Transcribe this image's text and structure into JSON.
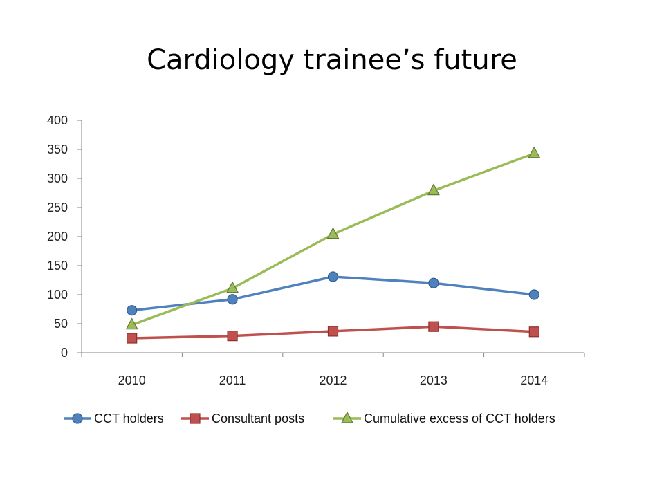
{
  "slide": {
    "title": "Cardiology trainee’s future"
  },
  "chart_data": {
    "type": "line",
    "title": "",
    "xlabel": "",
    "ylabel": "",
    "categories": [
      "2010",
      "2011",
      "2012",
      "2013",
      "2014"
    ],
    "ylim": [
      0,
      400
    ],
    "yticks": [
      0,
      50,
      100,
      150,
      200,
      250,
      300,
      350,
      400
    ],
    "grid": false,
    "legend": "bottom",
    "series": [
      {
        "name": "CCT holders",
        "values": [
          73,
          92,
          131,
          120,
          100
        ],
        "color": "#4f81bd",
        "marker": "circle"
      },
      {
        "name": "Consultant posts",
        "values": [
          25,
          29,
          37,
          45,
          36
        ],
        "color": "#c0504d",
        "marker": "square"
      },
      {
        "name": "Cumulative excess of CCT holders",
        "values": [
          48,
          111,
          204,
          279,
          343
        ],
        "color": "#9bbb59",
        "marker": "triangle"
      }
    ]
  }
}
